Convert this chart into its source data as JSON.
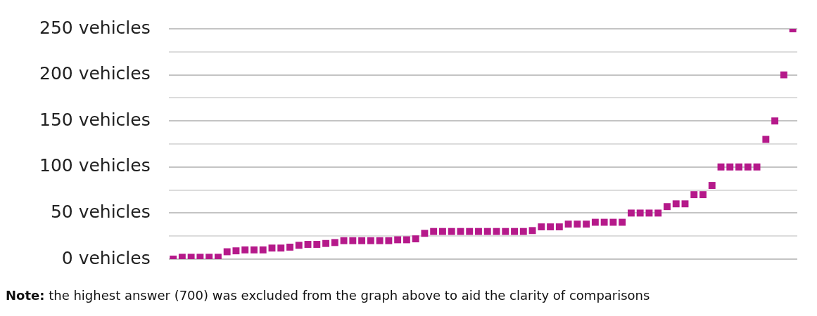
{
  "chart_data": {
    "type": "scatter",
    "categories": [
      null,
      null,
      null,
      null,
      null,
      null,
      null,
      null,
      null,
      null,
      null,
      null,
      null,
      null,
      null,
      null,
      null,
      null,
      null,
      null,
      null,
      null,
      null,
      null,
      null,
      null,
      null,
      null,
      null,
      null,
      null,
      null,
      null,
      null,
      null,
      null,
      null,
      null,
      null,
      null,
      null,
      null,
      null,
      null,
      null,
      null,
      null,
      null,
      null,
      null,
      null,
      null,
      null,
      null,
      null,
      null,
      null,
      null,
      null,
      null,
      null,
      null,
      null,
      null,
      null,
      null,
      null,
      null,
      null,
      null
    ],
    "series": [
      {
        "color": "#b5198a",
        "values": [
          0,
          2,
          2,
          2,
          2,
          2,
          8,
          9,
          10,
          10,
          10,
          12,
          12,
          13,
          15,
          16,
          16,
          17,
          18,
          20,
          20,
          20,
          20,
          20,
          20,
          21,
          21,
          22,
          28,
          30,
          30,
          30,
          30,
          30,
          30,
          30,
          30,
          30,
          30,
          30,
          31,
          35,
          35,
          35,
          38,
          38,
          38,
          40,
          40,
          40,
          40,
          50,
          50,
          50,
          50,
          57,
          60,
          60,
          70,
          70,
          80,
          100,
          100,
          100,
          100,
          100,
          130,
          150,
          200,
          250
        ]
      }
    ],
    "ylim": [
      0,
      250
    ],
    "yticks": [
      {
        "value": 0,
        "label": "0 vehicles"
      },
      {
        "value": 25,
        "label": null
      },
      {
        "value": 50,
        "label": "50 vehicles"
      },
      {
        "value": 75,
        "label": null
      },
      {
        "value": 100,
        "label": "100 vehicles"
      },
      {
        "value": 125,
        "label": null
      },
      {
        "value": 150,
        "label": "150 vehicles"
      },
      {
        "value": 175,
        "label": null
      },
      {
        "value": 200,
        "label": "200 vehicles"
      },
      {
        "value": 225,
        "label": null
      },
      {
        "value": 250,
        "label": "250 vehicles"
      }
    ],
    "grid": "y",
    "tick_labels": "y",
    "marker": "square",
    "legend": false,
    "annotations": [
      "Note: the highest answer (700) was excluded from the graph above to aid the clarity of comparisons"
    ]
  }
}
